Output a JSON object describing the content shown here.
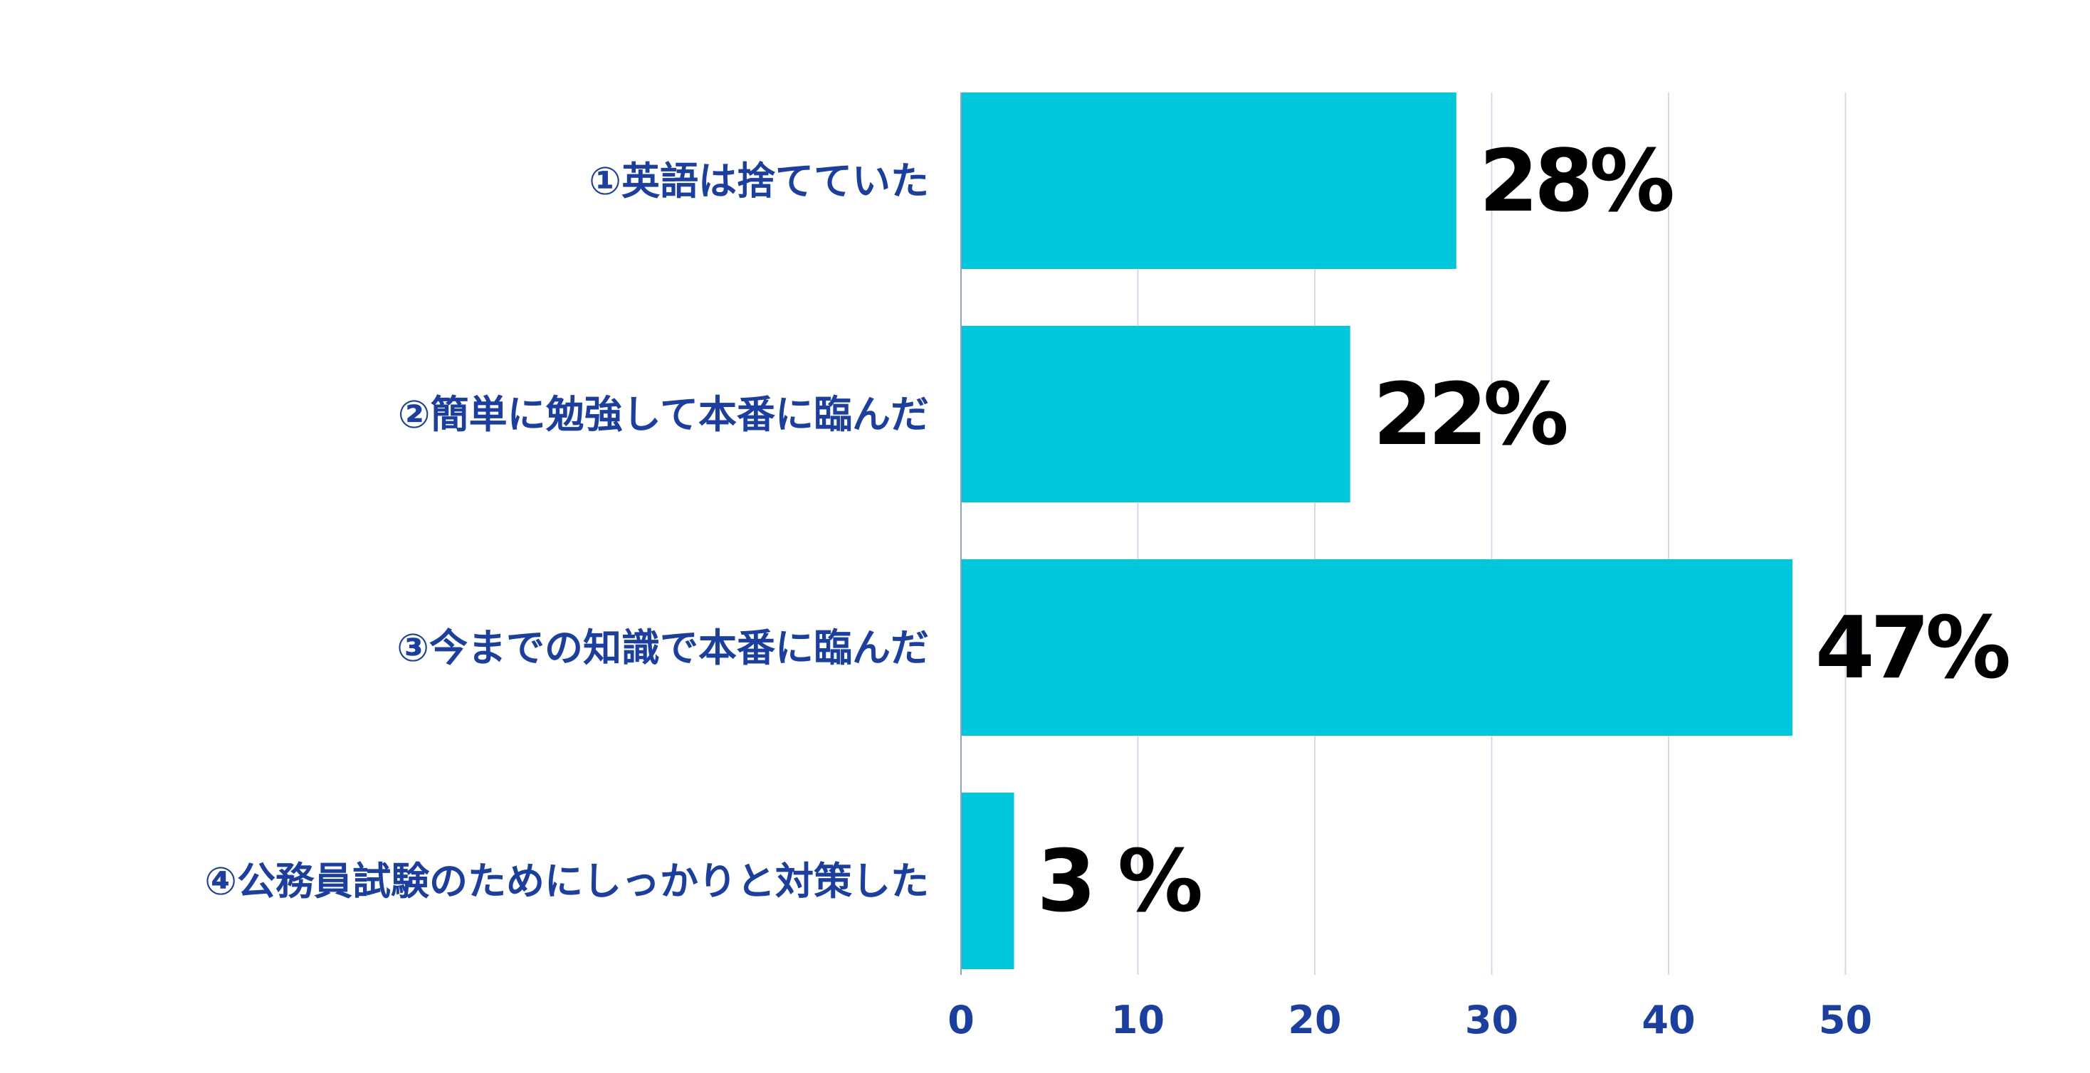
{
  "chart_data": {
    "type": "bar",
    "orientation": "horizontal",
    "categories": [
      "①英語は捨てていた",
      "②簡単に勉強して本番に臨んだ",
      "③今までの知識で本番に臨んだ",
      "④公務員試験のためにしっかりと対策した"
    ],
    "values": [
      28,
      22,
      47,
      3
    ],
    "value_labels": [
      "28%",
      "22%",
      "47%",
      "3 %"
    ],
    "x_ticks": [
      "0",
      "10",
      "20",
      "30",
      "40",
      "50"
    ],
    "xlim": [
      0,
      50
    ],
    "grid": true,
    "legend": "none",
    "colors": {
      "bar": "#00C8DC",
      "category_text": "#1A3FA0",
      "tick_text": "#1A3FA0",
      "value_text": "#000000",
      "grid": "#D3DAEA",
      "axis": "#8E9FD0"
    }
  }
}
